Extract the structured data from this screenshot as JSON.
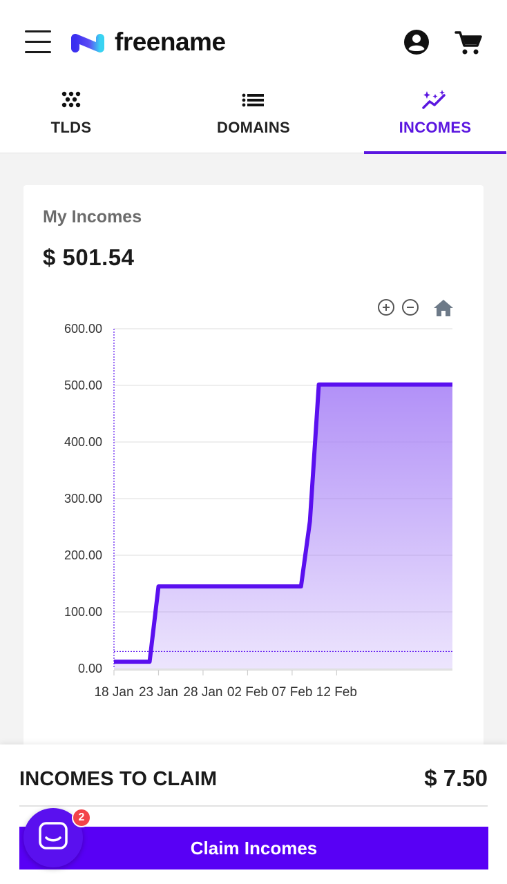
{
  "header": {
    "logo_text": "freename",
    "menu_icon": "hamburger-menu-icon",
    "account_icon": "account-circle-icon",
    "cart_icon": "shopping-cart-icon"
  },
  "tabs": [
    {
      "label": "TLDS",
      "icon": "dots-grid-icon",
      "active": false
    },
    {
      "label": "DOMAINS",
      "icon": "list-icon",
      "active": false
    },
    {
      "label": "INCOMES",
      "icon": "sparkle-chart-icon",
      "active": true
    }
  ],
  "card": {
    "title": "My Incomes",
    "amount": "$ 501.54",
    "toolbar": {
      "zoom_in_icon": "zoom-in-icon",
      "zoom_out_icon": "zoom-out-icon",
      "reset_icon": "home-icon"
    }
  },
  "chart_data": {
    "type": "area",
    "title": "",
    "xlabel": "",
    "ylabel": "",
    "ylim": [
      0,
      600
    ],
    "yticks": [
      "0.00",
      "100.00",
      "200.00",
      "300.00",
      "400.00",
      "500.00",
      "600.00"
    ],
    "xticks": [
      "18 Jan",
      "23 Jan",
      "28 Jan",
      "02 Feb",
      "07 Feb",
      "12 Feb"
    ],
    "x": [
      "2022-01-18",
      "2022-01-22",
      "2022-01-23",
      "2022-02-08",
      "2022-02-09",
      "2022-02-10",
      "2022-02-25"
    ],
    "series": [
      {
        "values": [
          12,
          12,
          145,
          145,
          260,
          501.54,
          501.54
        ]
      }
    ],
    "reference_line": 30,
    "grid": true,
    "line_color": "#5a10ef",
    "fill_color": "#a47df6"
  },
  "bottom": {
    "claim_label": "INCOMES TO CLAIM",
    "claim_amount": "$ 7.50",
    "claim_button": "Claim Incomes"
  },
  "chat": {
    "icon": "chat-bubble-icon",
    "badge": "2"
  },
  "colors": {
    "accent": "#5a16e0",
    "button": "#5800f5"
  }
}
